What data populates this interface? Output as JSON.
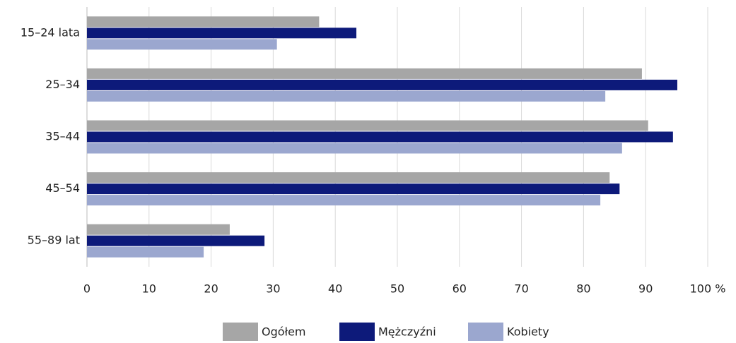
{
  "chart_data": {
    "type": "hbar",
    "categories": [
      "15–24 lata",
      "25–34",
      "35–44",
      "45–54",
      "55–89 lat"
    ],
    "series": [
      {
        "name": "Ogółem",
        "color": "#a6a6a6",
        "values": [
          37.4,
          89.4,
          90.4,
          84.2,
          23.0
        ]
      },
      {
        "name": "Mężczyźni",
        "color": "#0d1a7a",
        "values": [
          43.4,
          95.1,
          94.4,
          85.8,
          28.6
        ]
      },
      {
        "name": "Kobiety",
        "color": "#9ba7cf",
        "values": [
          30.6,
          83.5,
          86.2,
          82.7,
          18.8
        ]
      }
    ],
    "xlim": [
      0,
      100
    ],
    "xticks": [
      0,
      10,
      20,
      30,
      40,
      50,
      60,
      70,
      80,
      90,
      {
        "value": 100,
        "label": "100 %"
      }
    ],
    "grid": true,
    "legend": "bottom"
  }
}
